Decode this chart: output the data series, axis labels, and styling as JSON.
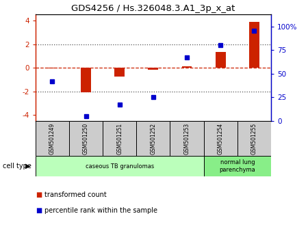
{
  "title": "GDS4256 / Hs.326048.3.A1_3p_x_at",
  "categories": [
    "GSM501249",
    "GSM501250",
    "GSM501251",
    "GSM501252",
    "GSM501253",
    "GSM501254",
    "GSM501255"
  ],
  "transformed_count": [
    -0.05,
    -2.05,
    -0.75,
    -0.18,
    0.12,
    1.35,
    3.85
  ],
  "percentile_rank": [
    42,
    5,
    17,
    25,
    67,
    80,
    95
  ],
  "ylim_left": [
    -4.5,
    4.5
  ],
  "ylim_right": [
    0,
    112.5
  ],
  "yticks_left": [
    -4,
    -2,
    0,
    2,
    4
  ],
  "yticks_right": [
    0,
    25,
    50,
    75,
    100
  ],
  "ytick_labels_right": [
    "0",
    "25",
    "50",
    "75",
    "100%"
  ],
  "bar_color": "#cc2200",
  "marker_color": "#0000cc",
  "dashed_line_color": "#cc2200",
  "dotted_line_color": "#555555",
  "cell_type_groups": [
    {
      "label": "caseous TB granulomas",
      "start": 0,
      "end": 4,
      "color": "#bbffbb"
    },
    {
      "label": "normal lung\nparenchyma",
      "start": 5,
      "end": 6,
      "color": "#88ee88"
    }
  ],
  "cell_type_label": "cell type",
  "legend_items": [
    {
      "color": "#cc2200",
      "label": "transformed count"
    },
    {
      "color": "#0000cc",
      "label": "percentile rank within the sample"
    }
  ],
  "tick_box_color": "#cccccc",
  "bar_width": 0.3
}
